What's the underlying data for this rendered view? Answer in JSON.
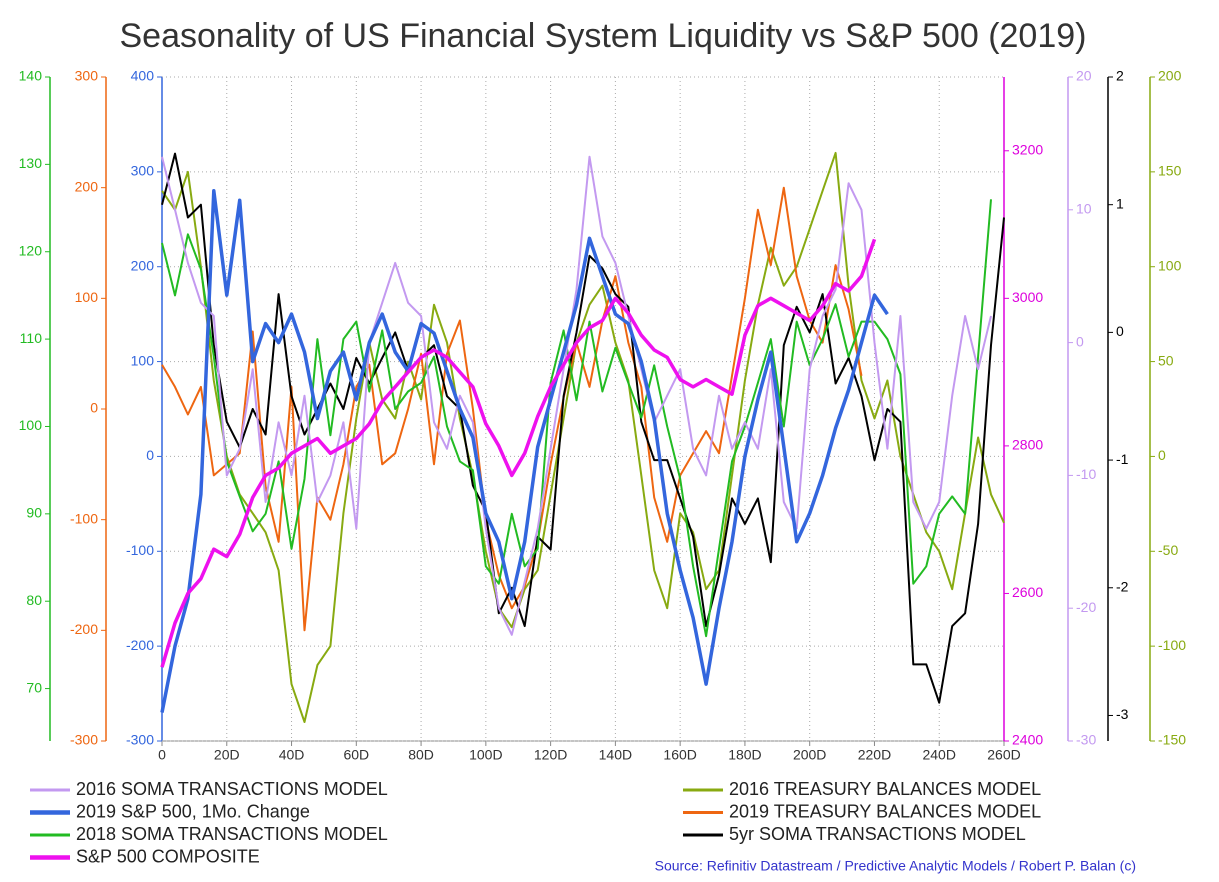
{
  "chart_data": {
    "type": "line",
    "title": "Seasonality of US Financial System Liquidity vs S&P 500 (2019)",
    "source": "Source: Refinitiv Datastream / Predictive Analytic Models / Robert P. Balan (c)",
    "source_color": "#3333cc",
    "grid": true,
    "xlim": [
      0,
      260
    ],
    "xticks": [
      0,
      {
        "value": 20,
        "label": "20D"
      },
      {
        "value": 40,
        "label": "40D"
      },
      {
        "value": 60,
        "label": "60D"
      },
      {
        "value": 80,
        "label": "80D"
      },
      {
        "value": 100,
        "label": "100D"
      },
      {
        "value": 120,
        "label": "120D"
      },
      {
        "value": 140,
        "label": "140D"
      },
      {
        "value": 160,
        "label": "160D"
      },
      {
        "value": 180,
        "label": "180D"
      },
      {
        "value": 200,
        "label": "200D"
      },
      {
        "value": 220,
        "label": "220D"
      },
      {
        "value": 240,
        "label": "240D"
      },
      {
        "value": 260,
        "label": "260D"
      }
    ],
    "x": [
      0,
      4,
      8,
      12,
      16,
      20,
      24,
      28,
      32,
      36,
      40,
      44,
      48,
      52,
      56,
      60,
      64,
      68,
      72,
      76,
      80,
      84,
      88,
      92,
      96,
      100,
      104,
      108,
      112,
      116,
      120,
      124,
      128,
      132,
      136,
      140,
      144,
      148,
      152,
      156,
      160,
      164,
      168,
      172,
      176,
      180,
      184,
      188,
      192,
      196,
      200,
      204,
      208,
      212,
      216,
      220,
      224,
      228,
      232,
      236,
      240,
      244,
      248,
      252,
      256,
      260
    ],
    "axes": {
      "y2": {
        "color": "#22bb22",
        "side": "left",
        "lim": [
          64,
          140
        ],
        "ticks": [
          70,
          80,
          90,
          100,
          110,
          120,
          130,
          140
        ]
      },
      "y3": {
        "color": "#ee6611",
        "side": "left",
        "lim": [
          -300,
          300
        ],
        "ticks": [
          -300,
          -200,
          -100,
          0,
          100,
          200,
          300
        ]
      },
      "y": {
        "color": "#3366dd",
        "side": "left",
        "lim": [
          -300,
          400
        ],
        "ticks": [
          -300,
          -200,
          -100,
          0,
          100,
          200,
          300,
          400
        ]
      },
      "y4": {
        "color": "#dd00dd",
        "side": "right",
        "lim": [
          2400,
          3300
        ],
        "ticks": [
          2400,
          2600,
          2800,
          3000,
          3200
        ]
      },
      "y5": {
        "color": "#c399f0",
        "side": "right",
        "lim": [
          -30,
          20
        ],
        "ticks": [
          -30,
          -20,
          -10,
          0,
          10,
          20
        ]
      },
      "y6": {
        "color": "#000000",
        "side": "right",
        "lim": [
          -3.2,
          2
        ],
        "ticks": [
          -3,
          -2,
          -1,
          0,
          1,
          2
        ]
      },
      "y7": {
        "color": "#88aa11",
        "side": "right",
        "lim": [
          -150,
          200
        ],
        "ticks": [
          -150,
          -100,
          -50,
          0,
          50,
          100,
          150,
          200
        ]
      }
    },
    "series": [
      {
        "name": "2016 SOMA TRANSACTIONS MODEL",
        "color": "#c399f0",
        "axis": "y5",
        "values": [
          14,
          10,
          6,
          3,
          2,
          -10,
          -8,
          -2,
          -12,
          -6,
          -10,
          -4,
          -12,
          -10,
          -6,
          -14,
          0,
          3,
          6,
          3,
          2,
          -6,
          -8,
          -4,
          -6,
          -14,
          -20,
          -22,
          -18,
          -14,
          -8,
          -2,
          4,
          14,
          8,
          6,
          2,
          -2,
          -6,
          -4,
          -2,
          -8,
          -10,
          -4,
          -8,
          -6,
          -8,
          -2,
          -12,
          -14,
          -2,
          2,
          4,
          12,
          10,
          0,
          -8,
          2,
          -12,
          -14,
          -12,
          -4,
          2,
          -2,
          2,
          null
        ]
      },
      {
        "name": "2019 S&P 500, 1Mo. Change",
        "color": "#3366dd",
        "axis": "y",
        "values": [
          -270,
          -200,
          -150,
          -40,
          280,
          170,
          270,
          100,
          140,
          120,
          150,
          110,
          40,
          90,
          110,
          60,
          120,
          150,
          110,
          90,
          140,
          130,
          90,
          50,
          20,
          -60,
          -90,
          -150,
          -90,
          10,
          60,
          110,
          160,
          230,
          190,
          150,
          140,
          100,
          40,
          -60,
          -120,
          -170,
          -240,
          -160,
          -90,
          0,
          60,
          110,
          10,
          -90,
          -60,
          -20,
          30,
          70,
          120,
          170,
          150,
          null,
          null,
          null,
          null,
          null,
          null,
          null,
          null,
          null
        ]
      },
      {
        "name": "2018 SOMA TRANSACTIONS MODEL",
        "color": "#22bb22",
        "axis": "y2",
        "values": [
          121,
          115,
          122,
          118,
          108,
          96,
          92,
          88,
          90,
          96,
          86,
          94,
          110,
          99,
          110,
          112,
          104,
          111,
          102,
          104,
          105,
          108,
          100,
          96,
          95,
          84,
          82,
          90,
          84,
          86,
          105,
          111,
          103,
          112,
          104,
          109,
          105,
          101,
          107,
          100,
          94,
          84,
          76,
          86,
          96,
          100,
          105,
          110,
          100,
          112,
          107,
          110,
          114,
          108,
          112,
          112,
          110,
          106,
          82,
          84,
          90,
          92,
          90,
          108,
          126,
          null
        ]
      },
      {
        "name": "S&P 500 COMPOSITE",
        "color": "#ee11ee",
        "axis": "y4",
        "values": [
          2500,
          2560,
          2600,
          2620,
          2660,
          2650,
          2680,
          2730,
          2760,
          2770,
          2790,
          2800,
          2810,
          2790,
          2800,
          2810,
          2830,
          2860,
          2880,
          2900,
          2920,
          2930,
          2920,
          2900,
          2880,
          2830,
          2800,
          2760,
          2790,
          2840,
          2880,
          2910,
          2940,
          2960,
          2970,
          3000,
          2980,
          2950,
          2930,
          2920,
          2890,
          2880,
          2890,
          2880,
          2870,
          2950,
          2990,
          3000,
          2990,
          2980,
          2970,
          2990,
          3020,
          3010,
          3030,
          3080,
          null,
          null,
          null,
          null,
          null,
          null,
          null,
          null,
          null,
          null
        ]
      },
      {
        "name": "2016 TREASURY BALANCES MODEL",
        "color": "#88aa11",
        "axis": "y7",
        "values": [
          140,
          130,
          150,
          100,
          40,
          0,
          -20,
          -30,
          -40,
          -60,
          -120,
          -140,
          -110,
          -100,
          -30,
          20,
          60,
          30,
          20,
          50,
          30,
          80,
          60,
          20,
          -10,
          -50,
          -80,
          -90,
          -70,
          -60,
          -20,
          20,
          60,
          80,
          90,
          60,
          40,
          -10,
          -60,
          -80,
          -30,
          -40,
          -70,
          -60,
          -10,
          40,
          80,
          110,
          90,
          100,
          120,
          140,
          160,
          90,
          40,
          20,
          40,
          0,
          -20,
          -40,
          -50,
          -70,
          -30,
          10,
          -20,
          -35
        ]
      },
      {
        "name": "2019 TREASURY BALANCES MODEL",
        "color": "#ee6611",
        "axis": "y3",
        "values": [
          40,
          20,
          -5,
          20,
          -60,
          -50,
          -40,
          70,
          -70,
          -120,
          20,
          -200,
          -80,
          -100,
          -50,
          20,
          40,
          -50,
          -40,
          0,
          50,
          -50,
          50,
          80,
          0,
          -100,
          -150,
          -180,
          -160,
          -120,
          -50,
          10,
          60,
          20,
          80,
          120,
          60,
          20,
          -80,
          -120,
          -60,
          -40,
          -20,
          -40,
          30,
          100,
          180,
          130,
          200,
          120,
          80,
          60,
          130,
          90,
          30,
          null,
          null,
          null,
          null,
          null,
          null,
          null,
          null,
          null,
          null,
          null
        ]
      },
      {
        "name": "5yr SOMA TRANSACTIONS MODEL",
        "color": "#000000",
        "axis": "y6",
        "values": [
          1.0,
          1.4,
          0.9,
          1.0,
          -0.1,
          -0.7,
          -0.9,
          -0.6,
          -0.8,
          0.3,
          -0.5,
          -0.8,
          -0.6,
          -0.4,
          -0.6,
          -0.2,
          -0.4,
          -0.2,
          0.0,
          -0.3,
          -0.2,
          -0.1,
          -0.5,
          -0.6,
          -1.2,
          -1.4,
          -2.2,
          -2.0,
          -2.3,
          -1.6,
          -1.7,
          -0.5,
          0.0,
          0.6,
          0.5,
          0.3,
          0.2,
          -0.7,
          -1.0,
          -1.0,
          -1.3,
          -1.6,
          -2.3,
          -1.9,
          -1.3,
          -1.5,
          -1.3,
          -1.8,
          -0.1,
          0.2,
          0.0,
          0.3,
          -0.4,
          -0.2,
          -0.5,
          -1.0,
          -0.6,
          -0.7,
          -2.6,
          -2.6,
          -2.9,
          -2.3,
          -2.2,
          -1.5,
          -0.1,
          0.9
        ]
      }
    ]
  }
}
